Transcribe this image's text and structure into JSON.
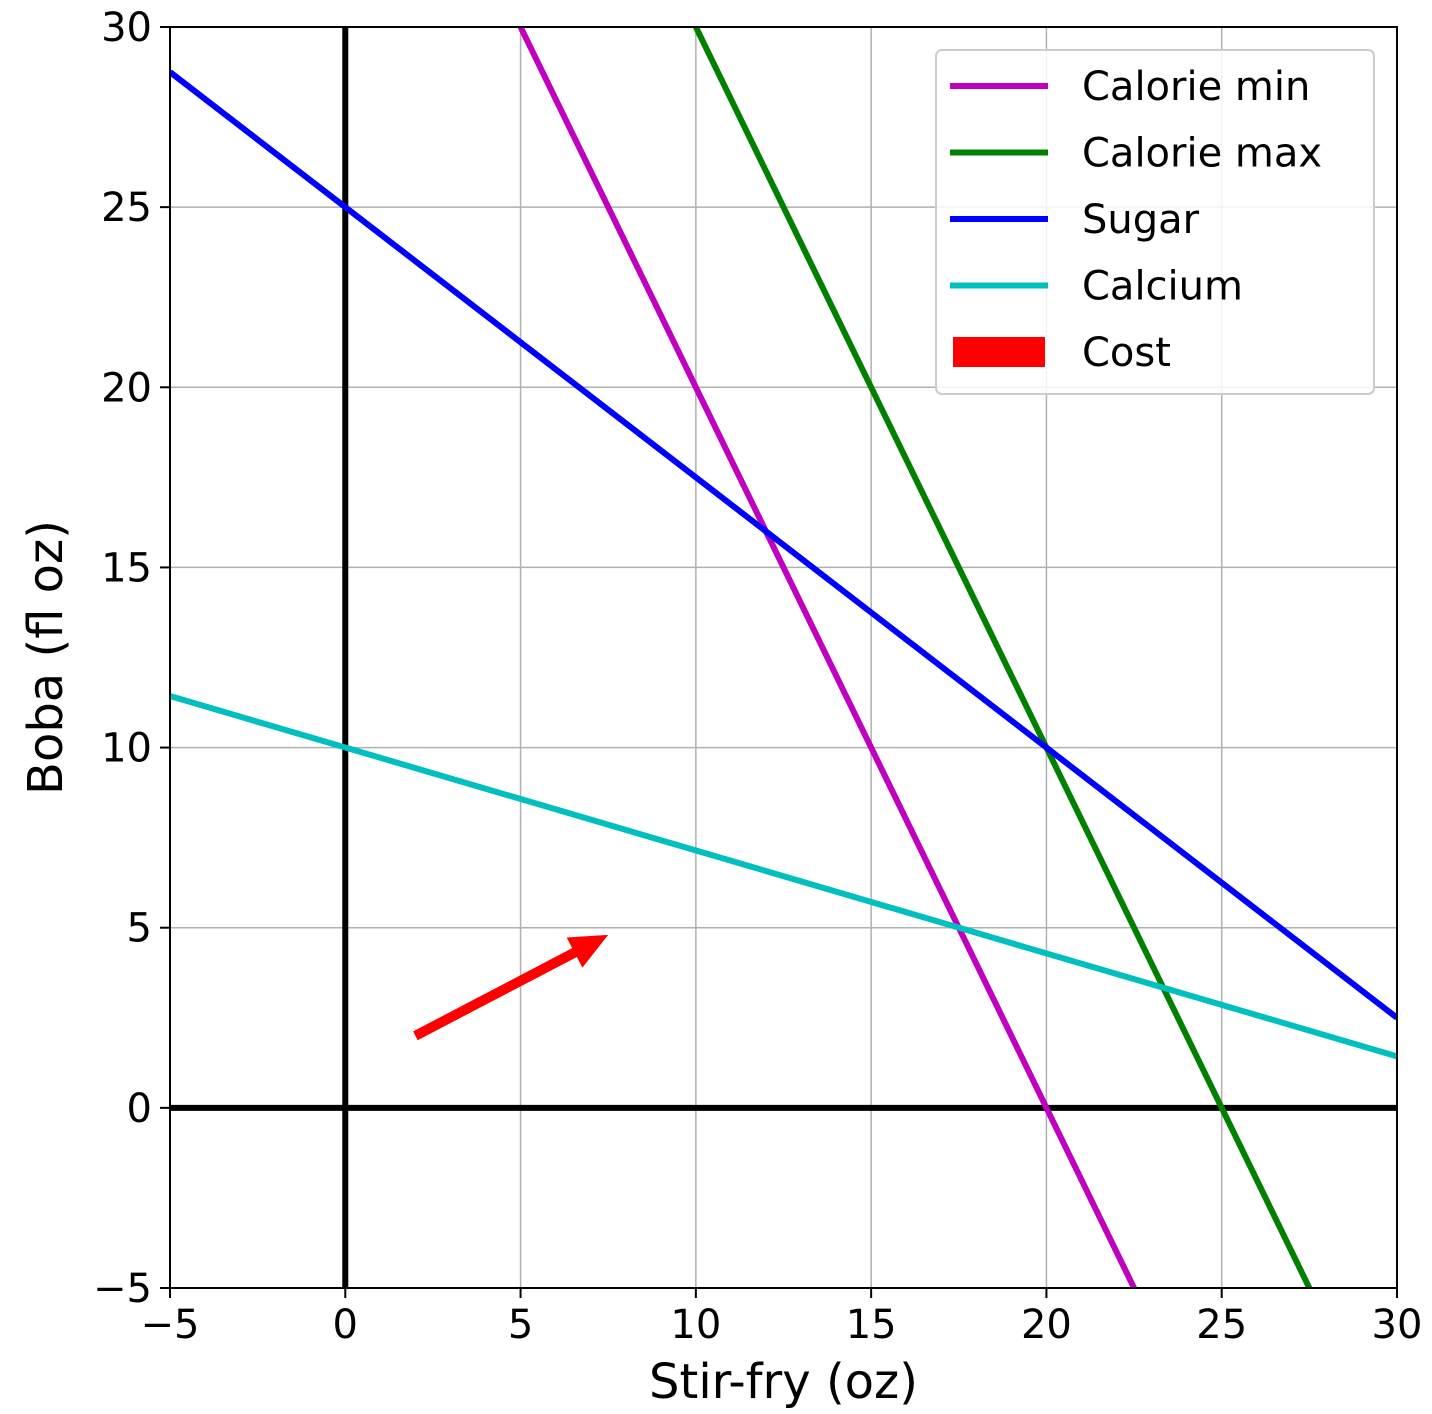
{
  "chart_data": {
    "type": "line",
    "title": "",
    "xlabel": "Stir-fry (oz)",
    "ylabel": "Boba (fl oz)",
    "xlim": [
      -5,
      30
    ],
    "ylim": [
      -5,
      30
    ],
    "xticks": [
      -5,
      0,
      5,
      10,
      15,
      20,
      25,
      30
    ],
    "yticks": [
      -5,
      0,
      5,
      10,
      15,
      20,
      25,
      30
    ],
    "xtick_labels": [
      "−5",
      "0",
      "5",
      "10",
      "15",
      "20",
      "25",
      "30"
    ],
    "ytick_labels": [
      "−5",
      "0",
      "5",
      "10",
      "15",
      "20",
      "25",
      "30"
    ],
    "grid": true,
    "legend_position": "top-right",
    "series": [
      {
        "name": "Calorie min",
        "color": "#bf00bf",
        "x": [
          5,
          22.5
        ],
        "y": [
          30,
          -5
        ]
      },
      {
        "name": "Calorie max",
        "color": "#008000",
        "x": [
          10,
          27.5
        ],
        "y": [
          30,
          -5
        ]
      },
      {
        "name": "Sugar",
        "color": "#0000ff",
        "x": [
          -5,
          30
        ],
        "y": [
          28.75,
          2.5
        ]
      },
      {
        "name": "Calcium",
        "color": "#00bfbf",
        "x": [
          -5,
          30
        ],
        "y": [
          11.43,
          1.43
        ]
      }
    ],
    "arrow": {
      "name": "Cost",
      "color": "#ff0000",
      "from": [
        2,
        2
      ],
      "to": [
        7.5,
        4.8
      ]
    },
    "axis_lines": {
      "x": 0,
      "y": 0,
      "color": "#000000"
    }
  }
}
